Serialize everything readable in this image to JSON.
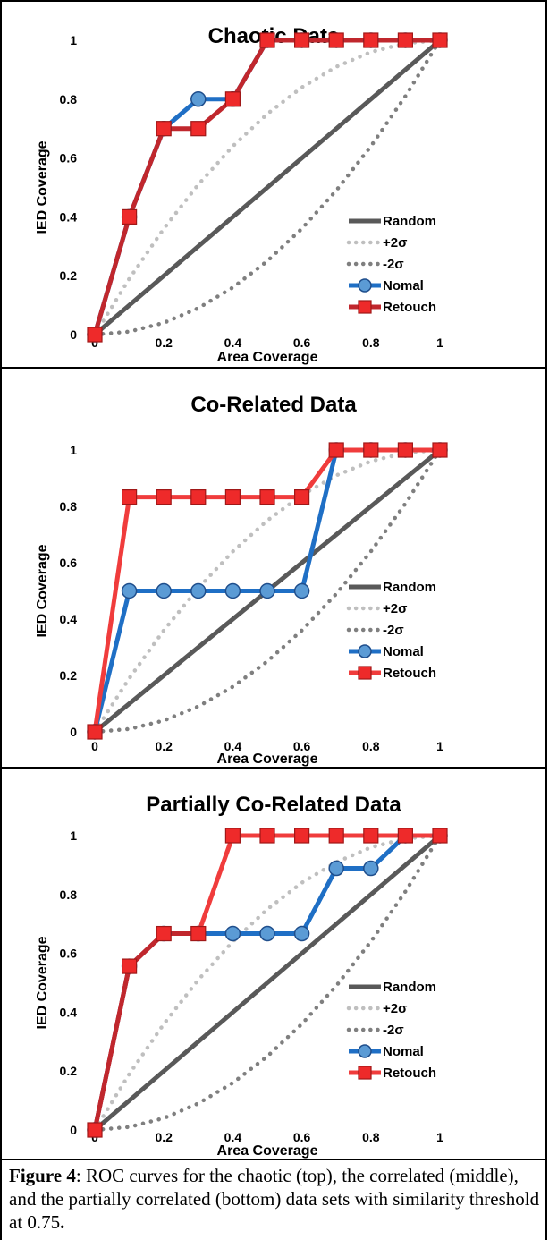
{
  "chart_data": [
    {
      "type": "line",
      "title": "Chaotic Data",
      "xlabel": "Area Coverage",
      "ylabel": "IED Coverage",
      "xlim": [
        0,
        1
      ],
      "ylim": [
        0,
        1
      ],
      "xticks": [
        "0",
        "0.2",
        "0.4",
        "0.6",
        "0.8",
        "1"
      ],
      "yticks": [
        "0",
        "0.2",
        "0.4",
        "0.6",
        "0.8",
        "1"
      ],
      "legend": [
        "Random",
        "+2σ",
        "-2σ",
        "Nomal",
        "Retouch"
      ],
      "legend_position": "bottom-right",
      "series": [
        {
          "name": "Random",
          "style": "solid",
          "color": "#595959",
          "x": [
            0,
            1
          ],
          "y": [
            0,
            1
          ]
        },
        {
          "name": "+2σ",
          "style": "dotted",
          "color": "#bfbfbf",
          "x": [
            0,
            0.1,
            0.2,
            0.3,
            0.4,
            0.5,
            0.6,
            0.7,
            0.8,
            0.9,
            1
          ],
          "y": [
            0,
            0.19,
            0.36,
            0.51,
            0.64,
            0.75,
            0.84,
            0.91,
            0.96,
            0.99,
            1
          ]
        },
        {
          "name": "-2σ",
          "style": "dotted",
          "color": "#7f7f7f",
          "x": [
            0,
            0.1,
            0.2,
            0.3,
            0.4,
            0.5,
            0.6,
            0.7,
            0.8,
            0.9,
            1
          ],
          "y": [
            0,
            0.01,
            0.04,
            0.09,
            0.16,
            0.25,
            0.36,
            0.49,
            0.64,
            0.81,
            1
          ]
        },
        {
          "name": "Nomal",
          "style": "line-circle",
          "color": "#1f6fc5",
          "x": [
            0,
            0.1,
            0.2,
            0.3,
            0.4,
            0.5,
            0.6,
            0.7,
            0.8,
            0.9,
            1
          ],
          "y": [
            0,
            0.4,
            0.7,
            0.8,
            0.8,
            1,
            1,
            1,
            1,
            1,
            1
          ]
        },
        {
          "name": "Retouch",
          "style": "line-square",
          "color": "#c0272d",
          "x": [
            0,
            0.1,
            0.2,
            0.3,
            0.4,
            0.5,
            0.6,
            0.7,
            0.8,
            0.9,
            1
          ],
          "y": [
            0,
            0.4,
            0.7,
            0.7,
            0.8,
            1,
            1,
            1,
            1,
            1,
            1
          ]
        }
      ]
    },
    {
      "type": "line",
      "title": "Co-Related Data",
      "xlabel": "Area Coverage",
      "ylabel": "IED Coverage",
      "xlim": [
        0,
        1
      ],
      "ylim": [
        0,
        1
      ],
      "xticks": [
        "0",
        "0.2",
        "0.4",
        "0.6",
        "0.8",
        "1"
      ],
      "yticks": [
        "0",
        "0.2",
        "0.4",
        "0.6",
        "0.8",
        "1"
      ],
      "legend": [
        "Random",
        "+2σ",
        "-2σ",
        "Nomal",
        "Retouch"
      ],
      "legend_position": "bottom-right",
      "series": [
        {
          "name": "Random",
          "style": "solid",
          "color": "#595959",
          "x": [
            0,
            1
          ],
          "y": [
            0,
            1
          ]
        },
        {
          "name": "+2σ",
          "style": "dotted",
          "color": "#bfbfbf",
          "x": [
            0,
            0.1,
            0.2,
            0.3,
            0.4,
            0.5,
            0.6,
            0.7,
            0.8,
            0.9,
            1
          ],
          "y": [
            0,
            0.19,
            0.36,
            0.51,
            0.64,
            0.75,
            0.84,
            0.91,
            0.96,
            0.99,
            1
          ]
        },
        {
          "name": "-2σ",
          "style": "dotted",
          "color": "#7f7f7f",
          "x": [
            0,
            0.1,
            0.2,
            0.3,
            0.4,
            0.5,
            0.6,
            0.7,
            0.8,
            0.9,
            1
          ],
          "y": [
            0,
            0.01,
            0.04,
            0.09,
            0.16,
            0.25,
            0.36,
            0.49,
            0.64,
            0.81,
            1
          ]
        },
        {
          "name": "Nomal",
          "style": "line-circle",
          "color": "#1f6fc5",
          "x": [
            0,
            0.1,
            0.2,
            0.3,
            0.4,
            0.5,
            0.6,
            0.7,
            0.8,
            0.9,
            1
          ],
          "y": [
            0,
            0.5,
            0.5,
            0.5,
            0.5,
            0.5,
            0.5,
            1,
            1,
            1,
            1
          ]
        },
        {
          "name": "Retouch",
          "style": "line-square",
          "color": "#f03c3c",
          "x": [
            0,
            0.1,
            0.2,
            0.3,
            0.4,
            0.5,
            0.6,
            0.7,
            0.8,
            0.9,
            1
          ],
          "y": [
            0,
            0.833,
            0.833,
            0.833,
            0.833,
            0.833,
            0.833,
            1,
            1,
            1,
            1
          ]
        }
      ]
    },
    {
      "type": "line",
      "title": "Partially Co-Related Data",
      "xlabel": "Area Coverage",
      "ylabel": "IED Coverage",
      "xlim": [
        0,
        1
      ],
      "ylim": [
        0,
        1
      ],
      "xticks": [
        "0",
        "0.2",
        "0.4",
        "0.6",
        "0.8",
        "1"
      ],
      "yticks": [
        "0",
        "0.2",
        "0.4",
        "0.6",
        "0.8",
        "1"
      ],
      "legend": [
        "Random",
        "+2σ",
        "-2σ",
        "Nomal",
        "Retouch"
      ],
      "legend_position": "bottom-right",
      "series": [
        {
          "name": "Random",
          "style": "solid",
          "color": "#595959",
          "x": [
            0,
            1
          ],
          "y": [
            0,
            1
          ]
        },
        {
          "name": "+2σ",
          "style": "dotted",
          "color": "#bfbfbf",
          "x": [
            0,
            0.1,
            0.2,
            0.3,
            0.4,
            0.5,
            0.6,
            0.7,
            0.8,
            0.9,
            1
          ],
          "y": [
            0,
            0.19,
            0.36,
            0.51,
            0.64,
            0.75,
            0.84,
            0.91,
            0.96,
            0.99,
            1
          ]
        },
        {
          "name": "-2σ",
          "style": "dotted",
          "color": "#7f7f7f",
          "x": [
            0,
            0.1,
            0.2,
            0.3,
            0.4,
            0.5,
            0.6,
            0.7,
            0.8,
            0.9,
            1
          ],
          "y": [
            0,
            0.01,
            0.04,
            0.09,
            0.16,
            0.25,
            0.36,
            0.49,
            0.64,
            0.81,
            1
          ]
        },
        {
          "name": "Nomal",
          "style": "line-circle",
          "color": "#1f6fc5",
          "x": [
            0,
            0.1,
            0.2,
            0.3,
            0.4,
            0.5,
            0.6,
            0.7,
            0.8,
            0.9,
            1
          ],
          "y": [
            0,
            0.556,
            0.667,
            0.667,
            0.667,
            0.667,
            0.667,
            0.889,
            0.889,
            1,
            1
          ]
        },
        {
          "name": "Retouch",
          "style": "line-square",
          "color": "#f03c3c",
          "x": [
            0,
            0.1,
            0.2,
            0.3,
            0.4,
            0.5,
            0.6,
            0.7,
            0.8,
            0.9,
            1
          ],
          "y": [
            0,
            0.556,
            0.667,
            0.667,
            1,
            1,
            1,
            1,
            1,
            1,
            1
          ]
        }
      ],
      "overlap_color": "#c0272d",
      "overlap_until_x": 0.3
    }
  ],
  "caption": {
    "label": "Figure 4",
    "text": ": ROC curves for the chaotic (top), the correlated (middle), and the partially correlated (bottom) data sets with similarity threshold at 0.75",
    "end": "."
  }
}
